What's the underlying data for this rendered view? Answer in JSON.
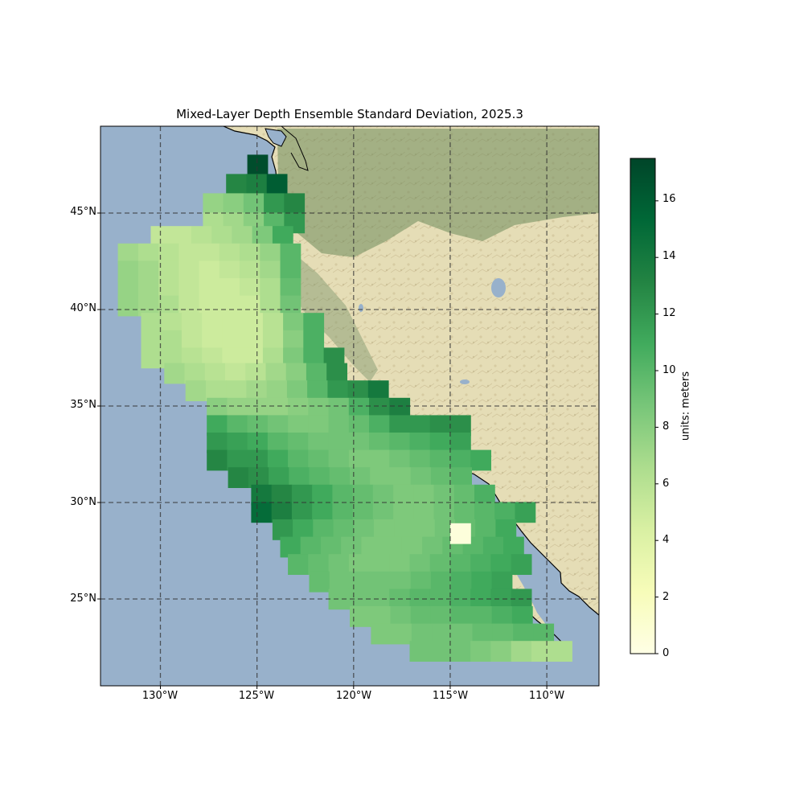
{
  "title": "Mixed-Layer Depth Ensemble Standard Deviation, 2025.3",
  "chart_data": {
    "type": "heatmap",
    "title": "Mixed-Layer Depth Ensemble Standard Deviation, 2025.3",
    "x_range": [
      -133.1,
      -107.3
    ],
    "y_range": [
      20.5,
      49.5
    ],
    "cell_size_deg": 1.05,
    "lat_ticks": [
      {
        "value": 25,
        "label": "25°N"
      },
      {
        "value": 30,
        "label": "30°N"
      },
      {
        "value": 35,
        "label": "35°N"
      },
      {
        "value": 40,
        "label": "40°N"
      },
      {
        "value": 45,
        "label": "45°N"
      }
    ],
    "lon_ticks": [
      {
        "value": -130,
        "label": "130°W"
      },
      {
        "value": -125,
        "label": "125°W"
      },
      {
        "value": -120,
        "label": "120°W"
      },
      {
        "value": -115,
        "label": "115°W"
      },
      {
        "value": -110,
        "label": "110°W"
      }
    ],
    "colorbar": {
      "label": "units: meters",
      "min": 0,
      "max": 17.5,
      "ticks": [
        "0",
        "2",
        "4",
        "6",
        "8",
        "10",
        "12",
        "14",
        "16"
      ],
      "colormap": "YlGn",
      "stops": [
        "#ffffe5",
        "#f7fcb9",
        "#d9f0a3",
        "#addd8e",
        "#78c679",
        "#41ab5d",
        "#238443",
        "#006837",
        "#004529"
      ]
    },
    "rows": [
      {
        "lat": 47.5,
        "start": -125.5,
        "values": [
          17
        ]
      },
      {
        "lat": 46.5,
        "start": -126.6,
        "values": [
          13,
          13.5,
          16
        ]
      },
      {
        "lat": 45.5,
        "start": -127.8,
        "values": [
          7.5,
          8,
          9,
          12,
          13
        ]
      },
      {
        "lat": 44.5,
        "start": -127.8,
        "values": [
          6.5,
          7,
          8,
          10,
          12
        ]
      },
      {
        "lat": 43.8,
        "start": -130.5,
        "values": [
          5.5,
          5.5,
          6,
          6.5,
          7,
          8.5,
          11
        ]
      },
      {
        "lat": 42.9,
        "start": -132.2,
        "values": [
          7,
          6.5,
          6,
          5.5,
          5.5,
          6,
          6.5,
          7.5,
          10
        ]
      },
      {
        "lat": 42.0,
        "start": -132.2,
        "values": [
          7.5,
          7,
          6,
          5.5,
          5,
          5.5,
          6,
          7,
          10
        ]
      },
      {
        "lat": 41.1,
        "start": -132.2,
        "values": [
          7.5,
          7,
          6,
          5.5,
          5,
          5,
          5.5,
          6.5,
          9.5
        ]
      },
      {
        "lat": 40.2,
        "start": -132.2,
        "values": [
          7.5,
          7,
          6.5,
          5.5,
          5,
          5,
          5,
          6.5,
          9
        ]
      },
      {
        "lat": 39.3,
        "start": -131.0,
        "values": [
          6.5,
          6,
          5.5,
          5,
          5,
          5,
          6,
          8.5,
          10.5
        ]
      },
      {
        "lat": 38.4,
        "start": -131.0,
        "values": [
          6.5,
          6.5,
          5.5,
          5,
          5,
          5,
          6,
          8,
          10.5
        ]
      },
      {
        "lat": 37.5,
        "start": -131.0,
        "values": [
          6.5,
          6.5,
          6,
          5.5,
          5,
          5,
          6.5,
          8.5,
          10.5,
          12.5
        ]
      },
      {
        "lat": 36.7,
        "start": -129.8,
        "values": [
          7,
          6.5,
          6,
          5.5,
          6,
          7,
          8,
          10,
          12.5
        ]
      },
      {
        "lat": 35.8,
        "start": -128.7,
        "values": [
          7,
          6.5,
          6.5,
          7,
          7.5,
          8.5,
          10,
          12,
          12.5,
          14
        ]
      },
      {
        "lat": 34.9,
        "start": -127.6,
        "values": [
          8,
          7.5,
          7.5,
          7.5,
          8,
          8.5,
          9,
          10.5,
          12.5,
          13.5
        ]
      },
      {
        "lat": 34.0,
        "start": -127.6,
        "values": [
          11,
          10,
          9.5,
          9,
          8.5,
          8.5,
          9,
          9.5,
          10.5,
          12,
          12,
          12.5,
          12.5
        ]
      },
      {
        "lat": 33.1,
        "start": -127.6,
        "values": [
          12,
          11.5,
          11,
          10,
          9.5,
          9,
          9,
          9,
          9.5,
          10,
          10.5,
          11,
          11.5
        ]
      },
      {
        "lat": 32.2,
        "start": -127.6,
        "values": [
          13,
          12,
          12,
          11,
          10,
          9.5,
          9,
          8.5,
          8.5,
          9,
          9.5,
          10,
          10.5,
          11
        ]
      },
      {
        "lat": 31.3,
        "start": -126.5,
        "values": [
          13,
          12.5,
          11.5,
          10.5,
          10,
          9.5,
          9,
          8.5,
          8.5,
          9,
          9.5,
          10
        ]
      },
      {
        "lat": 30.4,
        "start": -125.3,
        "values": [
          14,
          13,
          12,
          11,
          10,
          9.5,
          9,
          8.5,
          8.5,
          9,
          9.5,
          10.5
        ]
      },
      {
        "lat": 29.5,
        "start": -125.3,
        "values": [
          15,
          13.5,
          12,
          11,
          10,
          9.5,
          9,
          8.5,
          8.5,
          9,
          9.5,
          10,
          10.5,
          11.5
        ]
      },
      {
        "lat": 28.6,
        "start": -124.2,
        "values": [
          12,
          11,
          10,
          9.5,
          9,
          8.5,
          8.5,
          8.5,
          9,
          9.5,
          10,
          11
        ]
      },
      {
        "lat": 27.7,
        "start": -123.8,
        "values": [
          11,
          10,
          9.5,
          9,
          8.5,
          8.5,
          8.5,
          9,
          9.5,
          10,
          10.5,
          11
        ]
      },
      {
        "lat": 26.8,
        "start": -123.4,
        "values": [
          10,
          9.5,
          9,
          8.5,
          8.5,
          8.5,
          9,
          9.5,
          10,
          10.5,
          11,
          11.5
        ]
      },
      {
        "lat": 25.9,
        "start": -122.3,
        "values": [
          9.5,
          9,
          9,
          9,
          9,
          9.5,
          10,
          10.5,
          11,
          11.5
        ]
      },
      {
        "lat": 25.0,
        "start": -121.3,
        "values": [
          9,
          9,
          9,
          9.5,
          10,
          10,
          10.5,
          11,
          11.5,
          12
        ]
      },
      {
        "lat": 24.1,
        "start": -120.2,
        "values": [
          8.5,
          8.5,
          9,
          9.5,
          9.5,
          10,
          10,
          10.5,
          11
        ]
      },
      {
        "lat": 23.2,
        "start": -119.1,
        "values": [
          8.5,
          8.5,
          9,
          9,
          9,
          9.5,
          9.5,
          10,
          10
        ]
      },
      {
        "lat": 22.3,
        "start": -117.1,
        "values": [
          9,
          9,
          9,
          8.5,
          8,
          7,
          6.5,
          6.5
        ]
      },
      {
        "lat": 28.4,
        "start": -115.0,
        "values": [
          0.5
        ]
      }
    ]
  }
}
